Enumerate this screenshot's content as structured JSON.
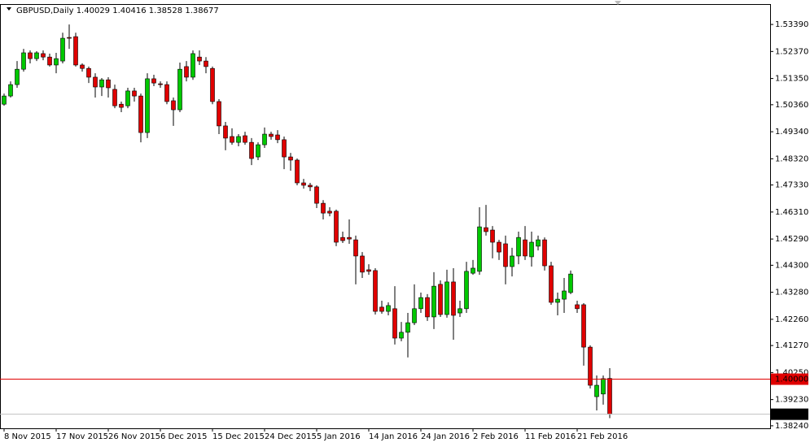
{
  "chart_data": {
    "type": "candlestick",
    "title": "GBPUSD,Daily",
    "categories": [
      "8 Nov 2015",
      null,
      null,
      null,
      null,
      null,
      null,
      null,
      "17 Nov 2015",
      null,
      null,
      null,
      null,
      null,
      null,
      null,
      "26 Nov 2015",
      null,
      null,
      null,
      null,
      null,
      null,
      null,
      "6 Dec 2015",
      null,
      null,
      null,
      null,
      null,
      null,
      null,
      "15 Dec 2015",
      null,
      null,
      null,
      null,
      null,
      null,
      null,
      "24 Dec 2015",
      null,
      null,
      null,
      null,
      null,
      null,
      null,
      "5 Jan 2016",
      null,
      null,
      null,
      null,
      null,
      null,
      null,
      "14 Jan 2016",
      null,
      null,
      null,
      null,
      null,
      null,
      null,
      "24 Jan 2016",
      null,
      null,
      null,
      null,
      null,
      null,
      null,
      "2 Feb 2016",
      null,
      null,
      null,
      null,
      null,
      null,
      null,
      "11 Feb 2016",
      null,
      null,
      null,
      null,
      null,
      null,
      null,
      "21 Feb 2016",
      null,
      null,
      null,
      null,
      null
    ],
    "open": [
      1.5038,
      1.5069,
      1.5112,
      1.517,
      1.5232,
      1.521,
      1.5229,
      1.5216,
      1.5186,
      1.5201,
      1.529,
      1.5293,
      1.5186,
      1.5173,
      1.514,
      1.5103,
      1.513,
      1.5094,
      1.5038,
      1.5032,
      1.5088,
      1.5069,
      1.4931,
      1.5134,
      1.5115,
      1.5112,
      1.5051,
      1.5017,
      1.518,
      1.514,
      1.5216,
      1.5201,
      1.5173,
      1.5048,
      1.4956,
      1.4916,
      1.4894,
      1.4919,
      1.4894,
      1.4839,
      1.4885,
      1.4925,
      1.4922,
      1.4904,
      1.4839,
      1.4827,
      1.4741,
      1.4732,
      1.4726,
      1.4664,
      1.4634,
      1.4634,
      1.4535,
      1.4535,
      1.4526,
      1.4465,
      1.4413,
      1.441,
      1.4272,
      1.4256,
      1.4266,
      1.4155,
      1.4177,
      1.4213,
      1.4266,
      1.4308,
      1.4235,
      1.4358,
      1.4244,
      1.4367,
      1.425,
      1.4266,
      1.44,
      1.4407,
      1.4572,
      1.4563,
      1.4517,
      1.4511,
      1.4425,
      1.4465,
      1.4526,
      1.4462,
      1.4502,
      1.4526,
      1.4428,
      1.429,
      1.4302,
      1.4327,
      1.4281,
      1.4281,
      1.4121,
      1.3934,
      1.3944,
      1.40029
    ],
    "high": [
      1.5078,
      1.5124,
      1.5201,
      1.5247,
      1.5241,
      1.5238,
      1.5241,
      1.5229,
      1.5232,
      1.5308,
      1.5339,
      1.5308,
      1.5192,
      1.518,
      1.5155,
      1.5137,
      1.514,
      1.5112,
      1.5048,
      1.51,
      1.51,
      1.5078,
      1.5155,
      1.5149,
      1.5124,
      1.5124,
      1.5063,
      1.5195,
      1.5201,
      1.5241,
      1.5241,
      1.5216,
      1.518,
      1.5057,
      1.4971,
      1.4947,
      1.4925,
      1.4934,
      1.491,
      1.4894,
      1.495,
      1.4934,
      1.494,
      1.4916,
      1.4854,
      1.4833,
      1.4756,
      1.4741,
      1.4732,
      1.4676,
      1.4649,
      1.464,
      1.4557,
      1.4603,
      1.4542,
      1.448,
      1.4434,
      1.4419,
      1.4296,
      1.429,
      1.4351,
      1.4216,
      1.425,
      1.4358,
      1.4327,
      1.4321,
      1.4404,
      1.4373,
      1.4413,
      1.4419,
      1.4296,
      1.4443,
      1.445,
      1.4649,
      1.4658,
      1.4578,
      1.4526,
      1.4542,
      1.4496,
      1.4557,
      1.4578,
      1.4557,
      1.4542,
      1.4535,
      1.4443,
      1.4327,
      1.4382,
      1.441,
      1.4296,
      1.4287,
      1.4128,
      1.4014,
      1.4014,
      1.40416
    ],
    "low": [
      1.5032,
      1.5063,
      1.51,
      1.5161,
      1.5192,
      1.5201,
      1.5204,
      1.518,
      1.5155,
      1.5192,
      1.5247,
      1.518,
      1.5161,
      1.5118,
      1.5063,
      1.5069,
      1.5063,
      1.5023,
      1.5008,
      1.5023,
      1.5048,
      1.4894,
      1.491,
      1.5106,
      1.51,
      1.5038,
      1.4956,
      1.5008,
      1.5124,
      1.513,
      1.5186,
      1.5155,
      1.5038,
      1.4925,
      1.4864,
      1.4885,
      1.4879,
      1.4885,
      1.4808,
      1.4827,
      1.4873,
      1.4904,
      1.4891,
      1.4793,
      1.4787,
      1.4732,
      1.4719,
      1.471,
      1.4646,
      1.4603,
      1.4615,
      1.4502,
      1.4514,
      1.4511,
      1.4358,
      1.4382,
      1.4394,
      1.4244,
      1.4247,
      1.4241,
      1.4131,
      1.4143,
      1.4082,
      1.4204,
      1.425,
      1.422,
      1.4189,
      1.4235,
      1.4232,
      1.4149,
      1.4235,
      1.425,
      1.4394,
      1.4394,
      1.4542,
      1.4456,
      1.445,
      1.4358,
      1.4388,
      1.4434,
      1.445,
      1.4425,
      1.4486,
      1.441,
      1.4281,
      1.4241,
      1.425,
      1.4321,
      1.425,
      1.4051,
      1.3965,
      1.3882,
      1.3904,
      1.38528
    ],
    "close": [
      1.5069,
      1.5112,
      1.517,
      1.5232,
      1.521,
      1.5232,
      1.5216,
      1.5186,
      1.521,
      1.5287,
      1.5287,
      1.5186,
      1.5173,
      1.514,
      1.5103,
      1.513,
      1.51,
      1.5032,
      1.5026,
      1.5088,
      1.5069,
      1.4931,
      1.5134,
      1.5118,
      1.5112,
      1.5048,
      1.5017,
      1.517,
      1.514,
      1.5229,
      1.5201,
      1.518,
      1.5048,
      1.4956,
      1.491,
      1.4894,
      1.4916,
      1.4894,
      1.4833,
      1.4885,
      1.4925,
      1.4916,
      1.4904,
      1.4839,
      1.4827,
      1.4741,
      1.4732,
      1.4726,
      1.4664,
      1.4627,
      1.4627,
      1.4517,
      1.4523,
      1.4529,
      1.4465,
      1.4404,
      1.4407,
      1.4256,
      1.4256,
      1.4278,
      1.4155,
      1.4177,
      1.4213,
      1.4266,
      1.4308,
      1.4235,
      1.4351,
      1.4244,
      1.4367,
      1.4241,
      1.4266,
      1.4407,
      1.4419,
      1.4575,
      1.4557,
      1.4517,
      1.448,
      1.4425,
      1.4465,
      1.4535,
      1.4465,
      1.4517,
      1.4526,
      1.4428,
      1.429,
      1.4302,
      1.4333,
      1.4397,
      1.4266,
      1.4121,
      1.3977,
      1.3977,
      1.4002,
      1.38677
    ],
    "up_color": "#00c800",
    "down_color": "#e00000",
    "ylim": [
      1.38145,
      1.5416
    ],
    "yticks": [
      {
        "value": 1.5339,
        "label": "1.53390"
      },
      {
        "value": 1.5237,
        "label": "1.52370"
      },
      {
        "value": 1.5135,
        "label": "1.51350"
      },
      {
        "value": 1.5036,
        "label": "1.50360"
      },
      {
        "value": 1.4934,
        "label": "1.49340"
      },
      {
        "value": 1.4832,
        "label": "1.48320"
      },
      {
        "value": 1.4733,
        "label": "1.47330"
      },
      {
        "value": 1.4631,
        "label": "1.46310"
      },
      {
        "value": 1.4529,
        "label": "1.45290"
      },
      {
        "value": 1.443,
        "label": "1.44300"
      },
      {
        "value": 1.4328,
        "label": "1.43280"
      },
      {
        "value": 1.4226,
        "label": "1.42260"
      },
      {
        "value": 1.4127,
        "label": "1.41270"
      },
      {
        "value": 1.4025,
        "label": "1.40250"
      },
      {
        "value": 1.3923,
        "label": "1.39230"
      },
      {
        "value": 1.3824,
        "label": "1.38240"
      }
    ],
    "level_line": {
      "value": 1.4,
      "label": "1.40000",
      "color": "#e00000"
    },
    "grid": false
  }
}
